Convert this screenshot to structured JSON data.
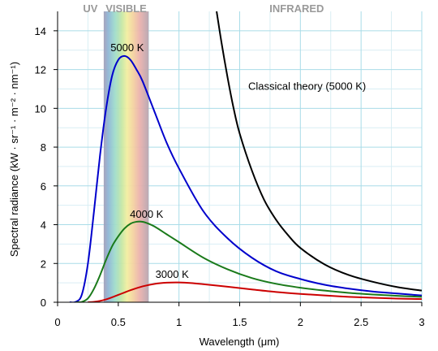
{
  "chart_data": {
    "type": "line",
    "xlabel": "Wavelength (μm)",
    "ylabel": "Spectral radiance (kW · sr⁻¹ · m⁻² · nm⁻¹)",
    "xlim": [
      0,
      3
    ],
    "ylim": [
      0,
      15
    ],
    "x_ticks": [
      {
        "value": 0,
        "label": "0"
      },
      {
        "value": 0.5,
        "label": "0.5"
      },
      {
        "value": 1,
        "label": "1"
      },
      {
        "value": 1.5,
        "label": "1.5"
      },
      {
        "value": 2,
        "label": "2"
      },
      {
        "value": 2.5,
        "label": "2.5"
      },
      {
        "value": 3,
        "label": "3"
      }
    ],
    "y_ticks": [
      {
        "value": 0,
        "label": "0"
      },
      {
        "value": 2,
        "label": "2"
      },
      {
        "value": 4,
        "label": "4"
      },
      {
        "value": 6,
        "label": "6"
      },
      {
        "value": 8,
        "label": "8"
      },
      {
        "value": 10,
        "label": "10"
      },
      {
        "value": 12,
        "label": "12"
      },
      {
        "value": 14,
        "label": "14"
      }
    ],
    "grid": true,
    "bands": [
      {
        "label": "UV",
        "from": 0,
        "to": 0.38
      },
      {
        "label": "VISIBLE",
        "from": 0.38,
        "to": 0.75
      },
      {
        "label": "INFRARED",
        "from": 0.75,
        "to": 3
      }
    ],
    "series": [
      {
        "name": "5000 K",
        "color": "#0000cc",
        "x": [
          0.1,
          0.15,
          0.2,
          0.25,
          0.3,
          0.35,
          0.4,
          0.45,
          0.5,
          0.55,
          0.6,
          0.65,
          0.7,
          0.8,
          0.9,
          1.0,
          1.2,
          1.4,
          1.6,
          1.8,
          2.0,
          2.2,
          2.4,
          2.6,
          2.8,
          3.0
        ],
        "y": [
          0.0,
          0.02,
          0.4,
          2.0,
          4.7,
          7.6,
          10.0,
          11.7,
          12.5,
          12.7,
          12.5,
          12.0,
          11.4,
          9.8,
          8.2,
          6.9,
          4.7,
          3.3,
          2.3,
          1.6,
          1.2,
          0.9,
          0.7,
          0.55,
          0.45,
          0.35
        ]
      },
      {
        "name": "4000 K",
        "color": "#1a7a1a",
        "x": [
          0.15,
          0.2,
          0.25,
          0.3,
          0.35,
          0.4,
          0.45,
          0.5,
          0.55,
          0.6,
          0.65,
          0.7,
          0.75,
          0.8,
          0.9,
          1.0,
          1.2,
          1.4,
          1.6,
          1.8,
          2.0,
          2.2,
          2.4,
          2.6,
          2.8,
          3.0
        ],
        "y": [
          0.0,
          0.02,
          0.2,
          0.7,
          1.4,
          2.2,
          2.9,
          3.4,
          3.8,
          4.05,
          4.15,
          4.15,
          4.05,
          3.9,
          3.5,
          3.1,
          2.3,
          1.7,
          1.25,
          0.95,
          0.75,
          0.6,
          0.48,
          0.4,
          0.33,
          0.28
        ]
      },
      {
        "name": "3000 K",
        "color": "#cc0000",
        "x": [
          0.25,
          0.3,
          0.35,
          0.4,
          0.45,
          0.5,
          0.55,
          0.6,
          0.7,
          0.8,
          0.9,
          1.0,
          1.1,
          1.2,
          1.4,
          1.6,
          1.8,
          2.0,
          2.2,
          2.4,
          2.6,
          2.8,
          3.0
        ],
        "y": [
          0.0,
          0.02,
          0.07,
          0.15,
          0.26,
          0.38,
          0.5,
          0.62,
          0.82,
          0.95,
          1.01,
          1.02,
          0.99,
          0.93,
          0.8,
          0.66,
          0.53,
          0.43,
          0.35,
          0.28,
          0.23,
          0.19,
          0.16
        ]
      },
      {
        "name": "Classical theory (5000 K)",
        "color": "#000000",
        "x": [
          1.31,
          1.35,
          1.4,
          1.45,
          1.5,
          1.6,
          1.7,
          1.8,
          1.9,
          2.0,
          2.2,
          2.4,
          2.6,
          2.8,
          3.0
        ],
        "y": [
          15.0,
          13.4,
          11.6,
          10.0,
          8.7,
          6.8,
          5.3,
          4.25,
          3.45,
          2.8,
          1.95,
          1.4,
          1.05,
          0.78,
          0.6
        ]
      }
    ],
    "annotations": [
      {
        "text": "5000 K",
        "x": 0.6,
        "y": 12.95
      },
      {
        "text": "4000 K",
        "x": 0.76,
        "y": 4.35
      },
      {
        "text": "3000 K",
        "x": 0.97,
        "y": 1.25
      },
      {
        "text": "Classical theory (5000 K)",
        "x": 1.57,
        "y": 10.95
      }
    ]
  }
}
